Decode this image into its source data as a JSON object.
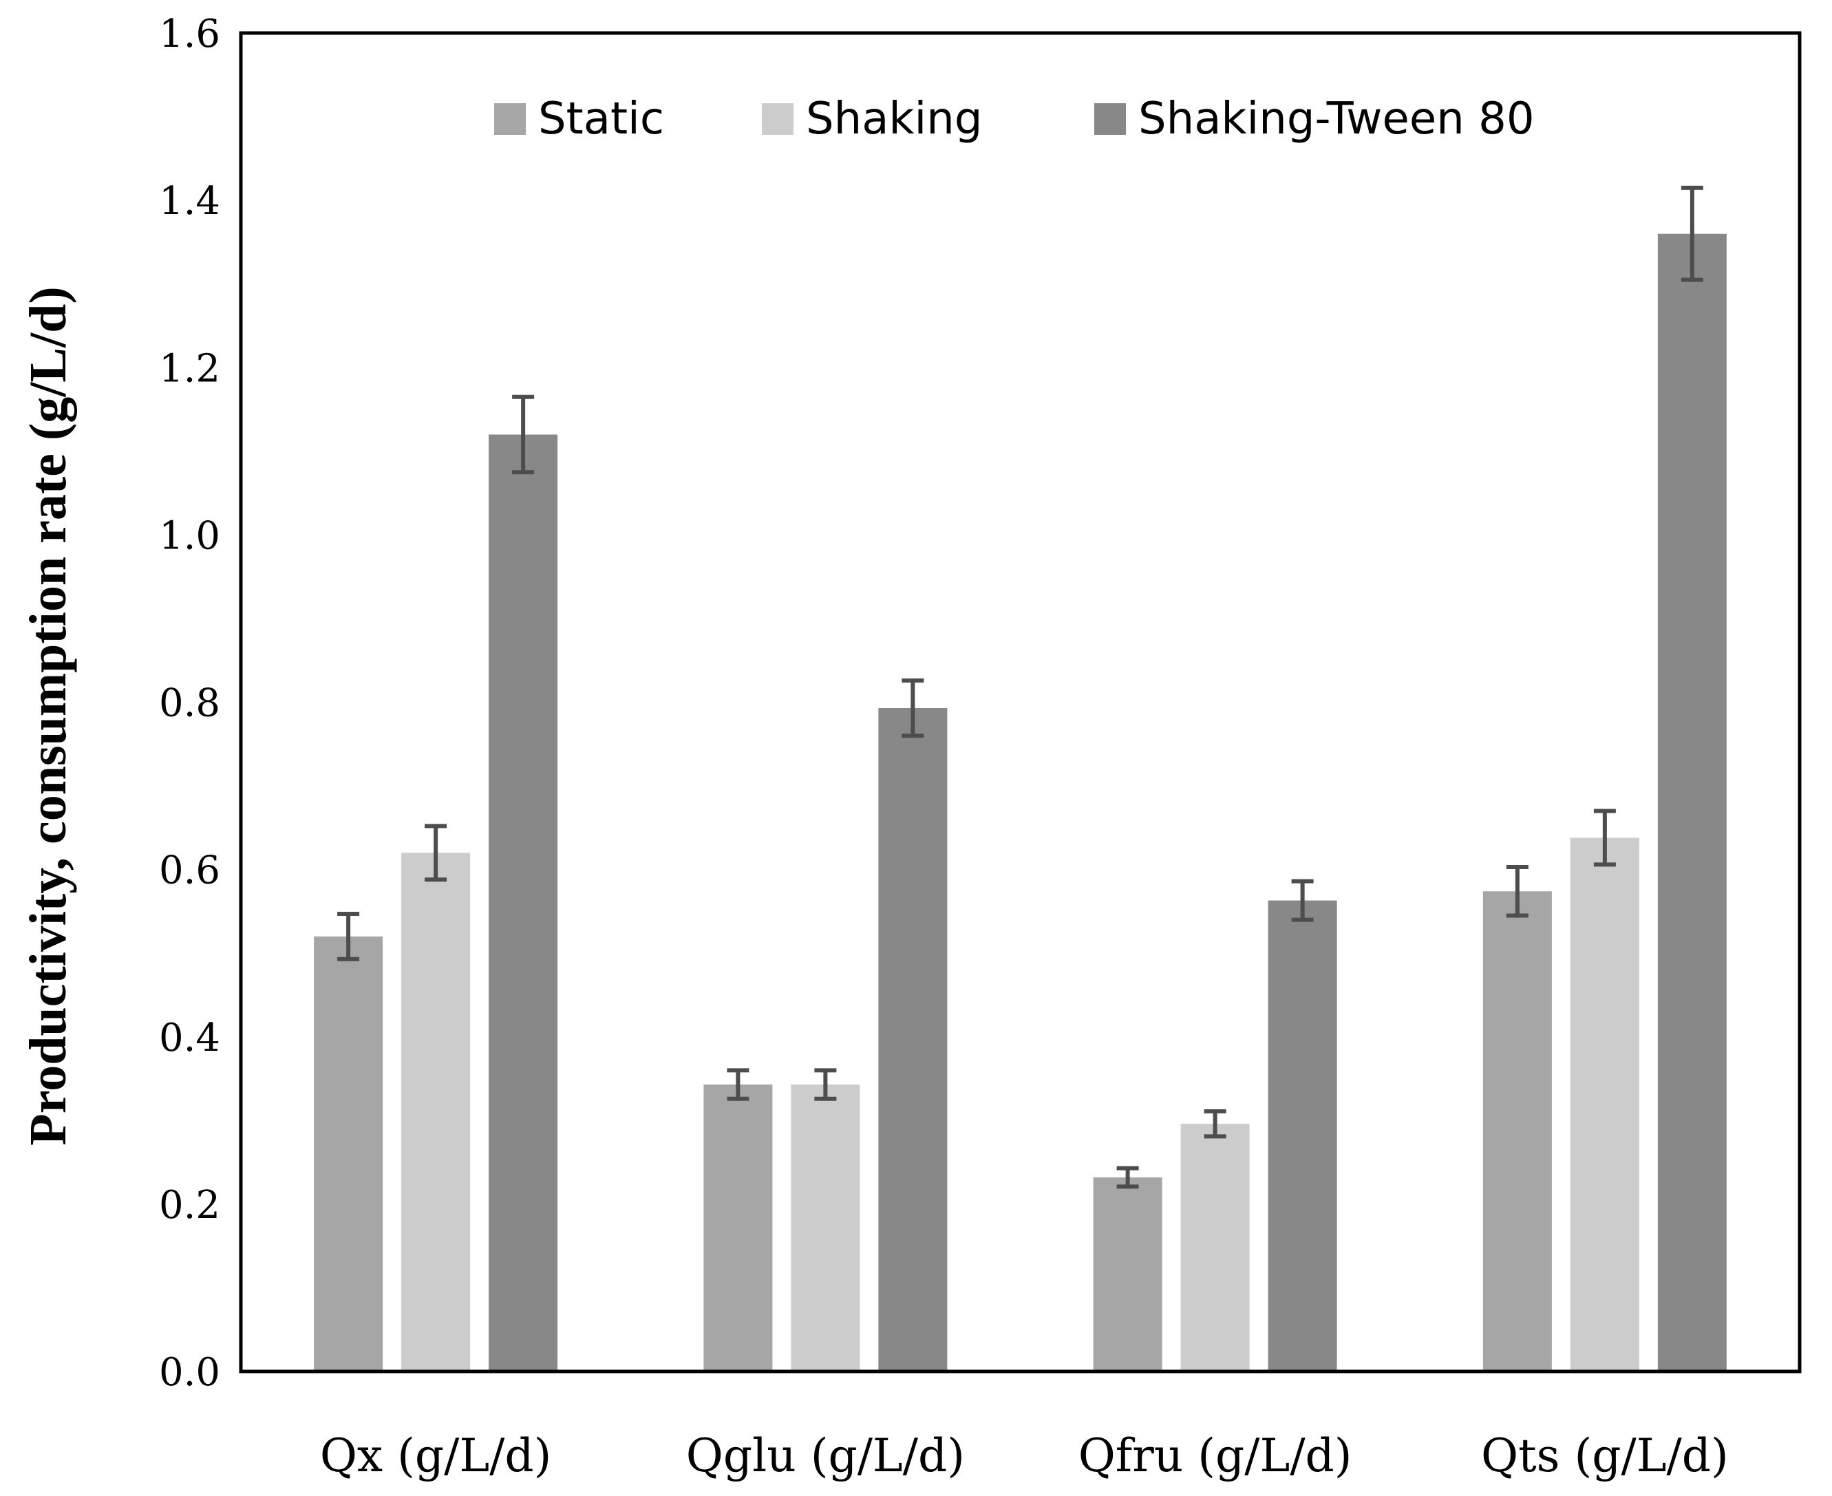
{
  "chart_data": {
    "type": "bar",
    "title": "",
    "xlabel": "",
    "ylabel": "Productivity,  consumption rate (g/L/d)",
    "ylim": [
      0,
      1.6
    ],
    "yticks": [
      "0.0",
      "0.2",
      "0.4",
      "0.6",
      "0.8",
      "1.0",
      "1.2",
      "1.4",
      "1.6"
    ],
    "grid": false,
    "legend_position": "top-center",
    "categories": [
      "Qx (g/L/d)",
      "Qglu (g/L/d)",
      "Qfru (g/L/d)",
      "Qts (g/L/d)"
    ],
    "series": [
      {
        "name": "Static",
        "color": "#a6a6a6",
        "values": [
          0.52,
          0.343,
          0.232,
          0.574
        ],
        "errors": [
          0.027,
          0.017,
          0.011,
          0.029
        ]
      },
      {
        "name": "Shaking",
        "color": "#cccccc",
        "values": [
          0.62,
          0.343,
          0.296,
          0.638
        ],
        "errors": [
          0.032,
          0.017,
          0.015,
          0.032
        ]
      },
      {
        "name": "Shaking-Tween 80",
        "color": "#888888",
        "values": [
          1.12,
          0.793,
          0.563,
          1.36
        ],
        "errors": [
          0.045,
          0.033,
          0.023,
          0.055
        ]
      }
    ],
    "error_bar_color": "#4d4d4d"
  }
}
